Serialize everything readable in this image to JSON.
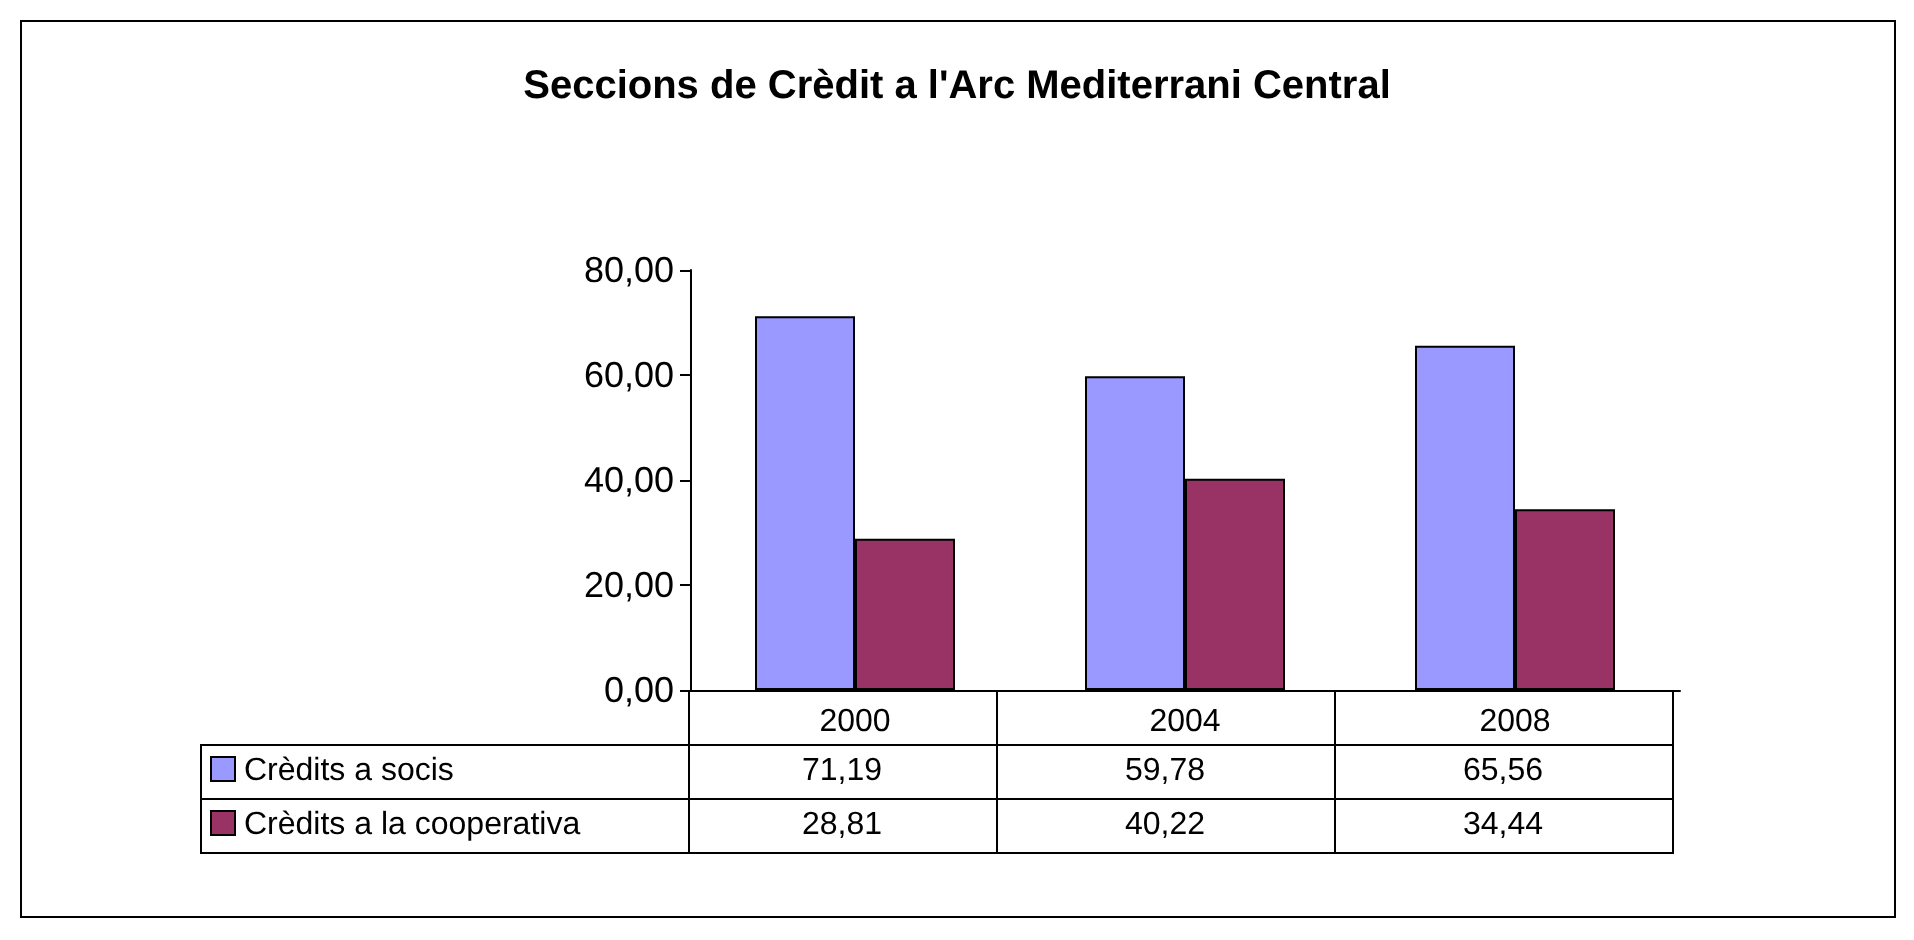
{
  "chart_data": {
    "type": "bar",
    "title": "Seccions de Crèdit a l'Arc Mediterrani Central",
    "categories": [
      "2000",
      "2004",
      "2008"
    ],
    "series": [
      {
        "name": "Crèdits a socis",
        "color": "#9999ff",
        "values": [
          71.19,
          59.78,
          65.56
        ],
        "value_labels": [
          "71,19",
          "59,78",
          "65,56"
        ]
      },
      {
        "name": "Crèdits a la cooperativa",
        "color": "#993366",
        "values": [
          28.81,
          40.22,
          34.44
        ],
        "value_labels": [
          "28,81",
          "40,22",
          "34,44"
        ]
      }
    ],
    "ylim": [
      0,
      80
    ],
    "yticks": [
      {
        "value": 0,
        "label": "0,00"
      },
      {
        "value": 20,
        "label": "20,00"
      },
      {
        "value": 40,
        "label": "40,00"
      },
      {
        "value": 60,
        "label": "60,00"
      },
      {
        "value": 80,
        "label": "80,00"
      }
    ],
    "legend": "bottom"
  }
}
